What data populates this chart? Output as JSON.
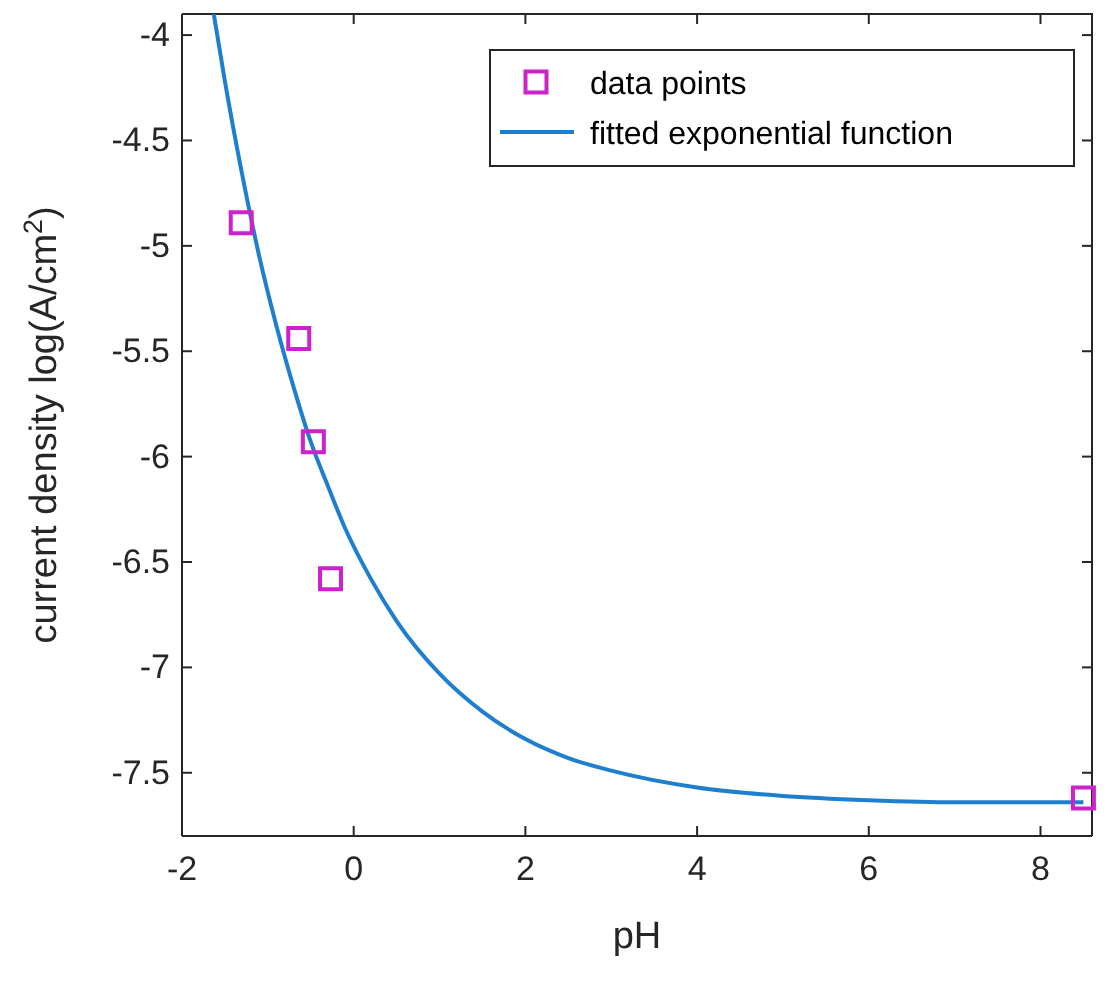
{
  "chart_data": {
    "type": "scatter",
    "xlabel": "pH",
    "ylabel": "current density log(A/cm$^{2}$)",
    "xlim": [
      -2,
      8.6
    ],
    "xticks": [
      -2,
      0,
      2,
      4,
      6,
      8
    ],
    "ylim": [
      -7.8,
      -3.9
    ],
    "yticks": [
      -7.5,
      -7,
      -6.5,
      -6,
      -5.5,
      -5,
      -4.5,
      -4
    ],
    "grid": false,
    "legend": "top right",
    "series": [
      {
        "name": "data points",
        "type": "scatter",
        "marker": "square",
        "color": "#cc22cc",
        "x": [
          -1.31,
          -0.64,
          -0.47,
          -0.27,
          8.5
        ],
        "values": [
          -4.89,
          -5.44,
          -5.93,
          -6.58,
          -7.62
        ]
      },
      {
        "name": "fitted exponential function",
        "type": "line",
        "marker": "none",
        "line_style": "solid",
        "color": "#1f7fcf",
        "x": [
          -1.63,
          -1.5,
          -1.3,
          -1.1,
          -0.9,
          -0.7,
          -0.5,
          -0.3,
          -0.1,
          0.2,
          0.5,
          1,
          1.5,
          2,
          2.5,
          3,
          4,
          5,
          6,
          7,
          8.5
        ],
        "values": [
          -3.9,
          -4.22,
          -4.66,
          -5.05,
          -5.38,
          -5.67,
          -5.93,
          -6.14,
          -6.34,
          -6.58,
          -6.78,
          -7.03,
          -7.21,
          -7.34,
          -7.43,
          -7.49,
          -7.57,
          -7.61,
          -7.63,
          -7.64,
          -7.64
        ]
      }
    ]
  }
}
